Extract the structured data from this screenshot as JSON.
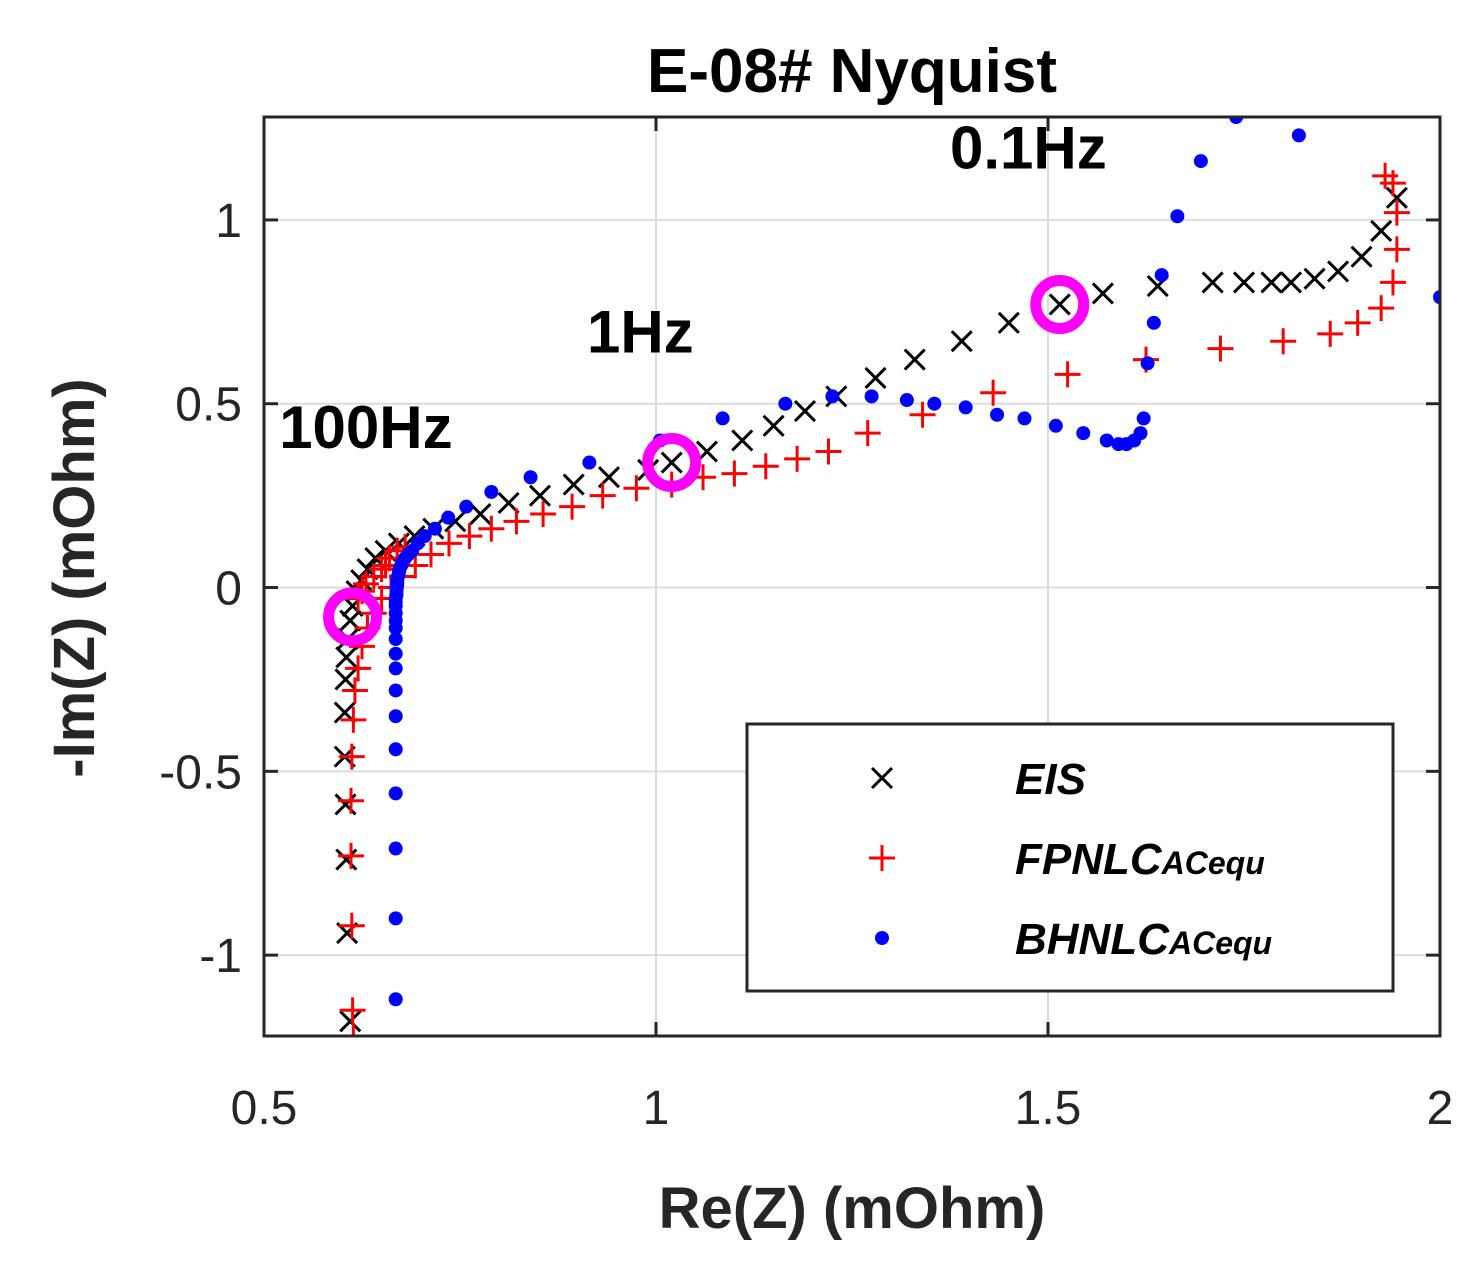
{
  "chart_data": {
    "type": "scatter",
    "title": "E-08# Nyquist",
    "xlabel": "Re(Z) (mOhm)",
    "ylabel": "-Im(Z) (mOhm)",
    "xlim": [
      0.5,
      2.0
    ],
    "ylim": [
      -1.22,
      1.28
    ],
    "xticks": [
      0.5,
      1.0,
      1.5,
      2.0
    ],
    "xtick_labels": [
      "0.5",
      "1",
      "1.5",
      "2"
    ],
    "yticks": [
      -1.0,
      -0.5,
      0.0,
      0.5,
      1.0
    ],
    "ytick_labels": [
      "-1",
      "-0.5",
      "0",
      "0.5",
      "1"
    ],
    "grid": true,
    "legend_position": "bottom-right",
    "series": [
      {
        "name": "EIS",
        "legend_main": "EIS",
        "legend_sub": "",
        "marker": "x",
        "color": "#000000",
        "x": [
          0.61,
          0.606,
          0.605,
          0.604,
          0.603,
          0.603,
          0.604,
          0.605,
          0.607,
          0.61,
          0.613,
          0.618,
          0.624,
          0.632,
          0.642,
          0.655,
          0.672,
          0.692,
          0.716,
          0.744,
          0.776,
          0.812,
          0.852,
          0.895,
          0.94,
          0.99,
          1.02,
          1.065,
          1.11,
          1.15,
          1.19,
          1.23,
          1.28,
          1.33,
          1.39,
          1.45,
          1.515,
          1.57,
          1.64,
          1.71,
          1.75,
          1.785,
          1.81,
          1.84,
          1.87,
          1.9,
          1.925,
          1.945
        ],
        "y": [
          -1.18,
          -0.94,
          -0.74,
          -0.59,
          -0.46,
          -0.34,
          -0.25,
          -0.19,
          -0.14,
          -0.09,
          -0.05,
          -0.01,
          0.02,
          0.05,
          0.08,
          0.1,
          0.12,
          0.14,
          0.16,
          0.18,
          0.2,
          0.23,
          0.25,
          0.28,
          0.3,
          0.32,
          0.34,
          0.37,
          0.4,
          0.44,
          0.48,
          0.52,
          0.57,
          0.62,
          0.67,
          0.72,
          0.77,
          0.8,
          0.82,
          0.83,
          0.83,
          0.83,
          0.83,
          0.84,
          0.86,
          0.9,
          0.97,
          1.06
        ]
      },
      {
        "name": "FPNLCACequ",
        "legend_main": "FPNLC",
        "legend_sub": "ACequ",
        "marker": "+",
        "color": "#ff0000",
        "x": [
          0.614,
          0.613,
          0.612,
          0.611,
          0.611,
          0.612,
          0.614,
          0.616,
          0.62,
          0.625,
          0.632,
          0.64,
          0.65,
          0.662,
          0.676,
          0.693,
          0.713,
          0.736,
          0.762,
          0.79,
          0.822,
          0.856,
          0.893,
          0.932,
          0.975,
          1.02,
          1.06,
          1.1,
          1.14,
          1.18,
          1.22,
          1.27,
          1.34,
          1.43,
          1.525,
          1.625,
          1.72,
          1.8,
          1.86,
          1.895,
          1.925,
          1.94,
          1.945,
          1.945,
          1.94,
          1.93
        ],
        "y": [
          -1.22,
          -1.15,
          -0.92,
          -0.73,
          -0.58,
          -0.46,
          -0.36,
          -0.28,
          -0.22,
          -0.16,
          -0.11,
          -0.07,
          -0.03,
          0.0,
          0.03,
          0.06,
          0.09,
          0.12,
          0.14,
          0.16,
          0.18,
          0.2,
          0.22,
          0.25,
          0.27,
          0.28,
          0.3,
          0.31,
          0.33,
          0.35,
          0.37,
          0.42,
          0.47,
          0.53,
          0.58,
          0.62,
          0.65,
          0.67,
          0.69,
          0.72,
          0.76,
          0.83,
          0.92,
          1.02,
          1.1,
          1.12
        ],
        "x2": [
          0.62,
          0.625,
          0.63,
          0.64,
          0.65,
          0.655,
          0.66,
          0.67,
          0.68
        ],
        "y2": [
          -0.03,
          -0.01,
          0.01,
          0.03,
          0.05,
          0.06,
          0.08,
          0.1,
          0.11
        ]
      },
      {
        "name": "BHNLCACequ",
        "legend_main": "BHNLC",
        "legend_sub": "ACequ",
        "marker": "dot",
        "color": "#0000ff",
        "x": [
          0.668,
          0.668,
          0.668,
          0.668,
          0.668,
          0.668,
          0.668,
          0.668,
          0.668,
          0.668,
          0.668,
          0.668,
          0.668,
          0.668,
          0.668,
          0.668,
          0.669,
          0.669,
          0.669,
          0.67,
          0.67,
          0.671,
          0.672,
          0.673,
          0.675,
          0.677,
          0.68,
          0.684,
          0.689,
          0.696,
          0.705,
          0.718,
          0.735,
          0.758,
          0.79,
          0.84,
          0.915,
          1.005,
          1.085,
          1.165,
          1.225,
          1.275,
          1.32,
          1.355,
          1.395,
          1.435,
          1.47,
          1.51,
          1.545,
          1.575,
          1.59,
          1.6,
          1.61,
          1.618,
          1.622,
          1.627,
          1.635,
          1.645,
          1.665,
          1.695,
          1.74,
          1.82,
          2.0
        ],
        "y": [
          -1.12,
          -0.9,
          -0.71,
          -0.56,
          -0.44,
          -0.35,
          -0.28,
          -0.22,
          -0.18,
          -0.14,
          -0.11,
          -0.09,
          -0.07,
          -0.05,
          -0.04,
          -0.03,
          -0.02,
          -0.01,
          0.0,
          0.01,
          0.02,
          0.03,
          0.04,
          0.05,
          0.06,
          0.07,
          0.08,
          0.09,
          0.1,
          0.12,
          0.14,
          0.16,
          0.19,
          0.22,
          0.26,
          0.3,
          0.34,
          0.4,
          0.46,
          0.5,
          0.52,
          0.52,
          0.51,
          0.5,
          0.49,
          0.47,
          0.46,
          0.44,
          0.42,
          0.4,
          0.39,
          0.39,
          0.4,
          0.42,
          0.46,
          0.61,
          0.72,
          0.85,
          1.01,
          1.16,
          1.28,
          1.23,
          0.79
        ]
      }
    ],
    "markers_highlight": {
      "color": "#ff00ff",
      "points": [
        [
          0.613,
          -0.08
        ],
        [
          1.02,
          0.34
        ],
        [
          1.515,
          0.77
        ]
      ]
    },
    "annotations": [
      {
        "text": "100Hz",
        "x": 0.63,
        "y": 0.38
      },
      {
        "text": "1Hz",
        "x": 0.98,
        "y": 0.64
      },
      {
        "text": "0.1Hz",
        "x": 1.475,
        "y": 1.14
      }
    ]
  }
}
